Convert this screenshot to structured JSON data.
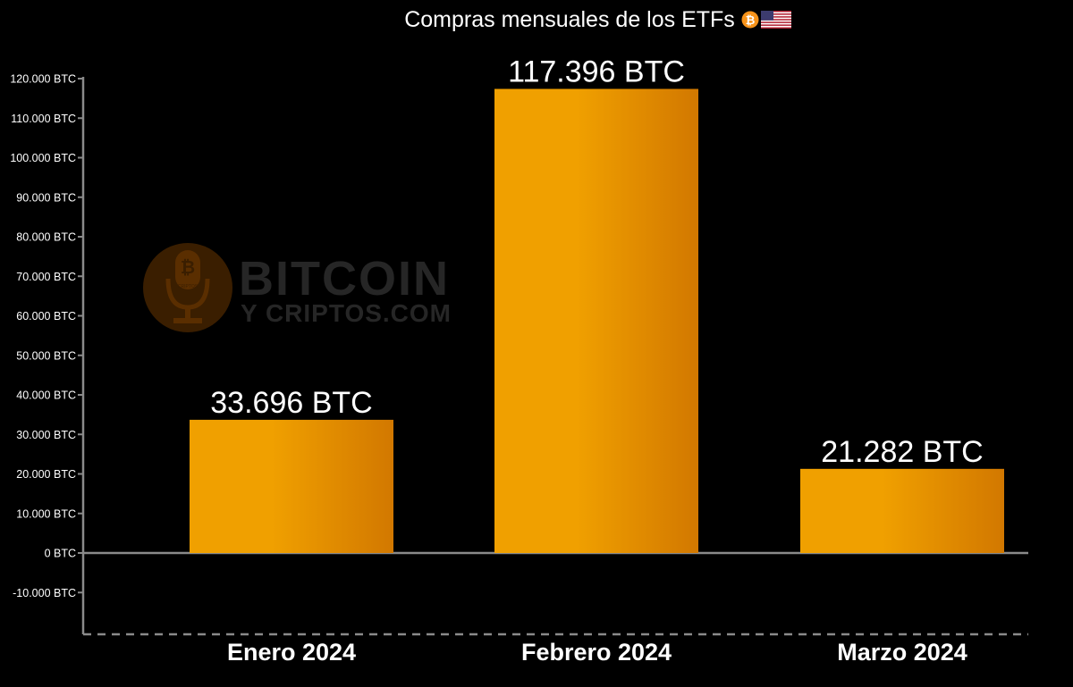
{
  "chart_data": {
    "type": "bar",
    "title": "Compras mensuales de los ETFs",
    "title_icons": [
      "bitcoin-coin-icon",
      "us-flag-icon"
    ],
    "categories": [
      "Enero 2024",
      "Febrero 2024",
      "Marzo 2024"
    ],
    "values": [
      33696,
      117396,
      21282
    ],
    "value_labels": [
      "33.696 BTC",
      "117.396 BTC",
      "21.282 BTC"
    ],
    "ylim": [
      -20000,
      120000
    ],
    "yticks": [
      {
        "value": 120000,
        "label": "120.000 BTC"
      },
      {
        "value": 110000,
        "label": "110.000 BTC"
      },
      {
        "value": 100000,
        "label": "100.000 BTC"
      },
      {
        "value": 90000,
        "label": "90.000 BTC"
      },
      {
        "value": 80000,
        "label": "80.000 BTC"
      },
      {
        "value": 70000,
        "label": "70.000 BTC"
      },
      {
        "value": 60000,
        "label": "60.000 BTC"
      },
      {
        "value": 50000,
        "label": "50.000 BTC"
      },
      {
        "value": 40000,
        "label": "40.000 BTC"
      },
      {
        "value": 30000,
        "label": "30.000 BTC"
      },
      {
        "value": 20000,
        "label": "20.000 BTC"
      },
      {
        "value": 10000,
        "label": "10.000 BTC"
      },
      {
        "value": 0,
        "label": "0 BTC"
      },
      {
        "value": -10000,
        "label": "-10.000 BTC"
      }
    ],
    "grid": false,
    "legend": "none",
    "colors": {
      "background": "#000000",
      "bar_light": "#F0A000",
      "bar_dark": "#D27800",
      "text": "#FFFFFF",
      "axis": "#8A8A8A",
      "bitcoin_orange": "#F7931A"
    },
    "watermark": {
      "line1": "BITCOIN",
      "line2": "Y CRIPTOS.COM",
      "badge": "CRIPTOS"
    }
  }
}
